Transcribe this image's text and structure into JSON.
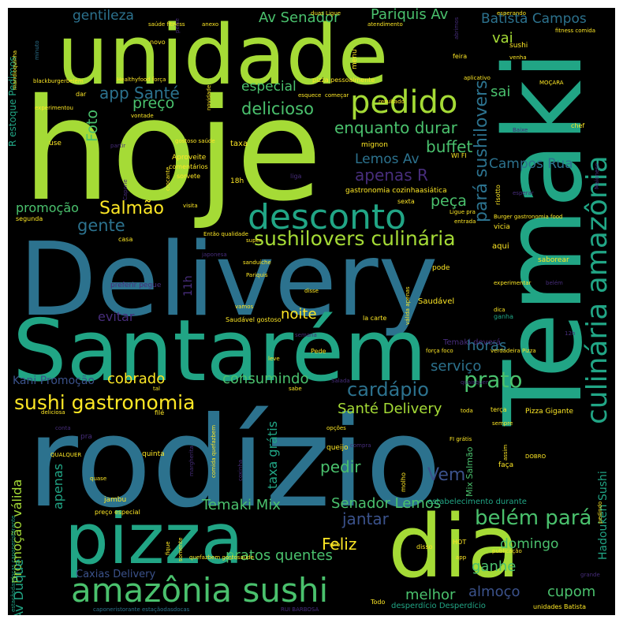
{
  "palette": {
    "background": "#000000",
    "lime": "#a5db36",
    "green": "#4ac16d",
    "teal": "#21a585",
    "teal2": "#1f9e89",
    "blue": "#2c728e",
    "indigo": "#3b528b",
    "purple": "#472d7b",
    "yellow": "#fde725"
  },
  "words": {
    "rodizio": "rodízio",
    "hoje": "hoje",
    "delivery": "Delivery",
    "santarem": "Santarém",
    "temaki": "Temaki",
    "unidade": "unidade",
    "pizza": "pizza",
    "dia": "dia",
    "culinaria_amazonia": "culinária amazônia",
    "amazonia_sushi": "amazônia sushi",
    "desconto": "desconto",
    "pedido": "pedido",
    "sushilovers_culinaria": "sushilovers culinária",
    "sushi_gastronomia": "sushi gastronomia",
    "cardapio": "cardápio",
    "prato": "prato",
    "belem_para": "belém pará",
    "para_sushilovers": "pará sushilovers",
    "salmao": "Salmão",
    "app_sante": "app Santé",
    "delicioso": "delicioso",
    "especial": "especial",
    "preco": "preço",
    "enquanto_durar": "enquanto durar",
    "buffet": "buffet",
    "foto": "Foto",
    "lemos_av": "Lemos Av",
    "apenas_r": "apenas R",
    "campos_rua": "Campos Rua",
    "peca": "peça",
    "gente": "gente",
    "promocao": "promoção",
    "av_senador": "Av Senador",
    "pariquis_av": "Pariquis Av",
    "gentileza": "gentileza",
    "batista_campos": "Batista Campos",
    "vai": "vai",
    "sai": "sai",
    "noite": "noite",
    "evitar": "evitar",
    "horas": "horas",
    "servico": "serviço",
    "cobrado": "cobrado",
    "consumindo": "consumindo",
    "kani_promocao": "Kani Promoção",
    "sante_delivery": "Santé Delivery",
    "vem": "Vem",
    "pedir": "pedir",
    "temaki_mix": "Temaki Mix",
    "senador_lemos": "Senador Lemos",
    "jantar": "jantar",
    "feliz": "Feliz",
    "domingo": "domingo",
    "ganhe": "ganhe",
    "pratos_quentes": "pratos quentes",
    "caxias_delivery": "Caxias Delivery",
    "melhor": "melhor",
    "almoco": "almoço",
    "cupom": "cupom",
    "promocao_valida": "Promoção válida",
    "apenas": "apenas",
    "av_duque": "Av Duque",
    "taxa_gratis": "taxa grátis",
    "hadouken_sushi": "Hadouken Sushi",
    "r_estoque_pedimos": "R estoque Pedimos",
    "once_11h": "11h",
    "use": "use",
    "taxa": "taxa",
    "mignon": "mignon",
    "wifi": "WI FI",
    "aproveite": "Aproveite",
    "comentarios": "comentários",
    "sorvete": "sorvete",
    "h18": "18h",
    "liga": "liga",
    "gastronomia_cozinha": "gastronomia cozinhaasiática",
    "sexta": "sexta",
    "ligue_pra": "Ligue pra",
    "burger_gastronomia": "Burger gastronomia food",
    "entrada": "entrada",
    "vicia": "vicia",
    "aqui": "aqui",
    "saborear": "saborear",
    "experimentar": "experimentar",
    "belem": "belém",
    "pode": "pode",
    "saudavel": "Saudável",
    "saudavel_gostoso": "Saudável gostoso",
    "la_carte": "la carte",
    "temaki_devera": "Temaki deverá",
    "forca_foco": "força foco",
    "verdadeira_pizza": "verdadeira Pizza",
    "pizza_gigante": "Pizza Gigante",
    "toda": "toda",
    "terca": "terça",
    "sempre": "sempre",
    "opcoes": "opções",
    "fi_gratis": "FI grátis",
    "faca": "faça",
    "mix_salmao": "Mix Salmão",
    "dobro": "DOBRO",
    "queijo": "queijo",
    "quinta": "quinta",
    "jambu": "jambu",
    "preco_especial": "preço especial",
    "estabelecimento_durante": "estabelecimento durante",
    "disso": "disso",
    "hot": "HOT",
    "rolo": "rolo",
    "todo": "Todo",
    "desperdicio": "desperdício Desperdício",
    "unidades_batista": "unidades Batista",
    "rui_barbosa": "RUI BARBOSA",
    "caponeristorante": "caponeristorante estaçãodasdocas",
    "estacaodasdocas": "estaçãodasdocas caponeristorante",
    "quefazbem": "quefazbem gostosaúde",
    "filé": "filé",
    "delicosa": "deliciosa",
    "conta": "conta",
    "pra": "pra",
    "qualquer": "QUALQUER",
    "quase": "quase",
    "tal": "tal",
    "sabe": "sabe",
    "salada": "Salada",
    "pede": "Pede",
    "leve": "leve",
    "semana": "semana",
    "dica": "dica",
    "ganha": "ganha",
    "valida_apenas": "válida apenas",
    "vamos": "vamos",
    "sanduiche": "sanduíche",
    "disse": "disse",
    "entao_qualidade": "Então qualidade",
    "super": "super",
    "japonesa": "japonesa",
    "preferir_pegue": "preferir pegue",
    "casa": "casa",
    "pariquis": "Pariquis",
    "visita": "visita",
    "segunda": "segunda",
    "capone": "Capone",
    "crocante": "crocante",
    "partir": "partir",
    "gostoso_saude": "gostoso saúde",
    "vontade": "vontade",
    "dar": "dar",
    "experimentou": "experimentou",
    "healthy": "Healthyfood força",
    "blackburger": "blackburgerbelém",
    "novo": "novo",
    "saude_fitness": "saúde fitness",
    "anexo": "anexo",
    "duas_ligue": "duas Ligue",
    "atendimento": "atendimento",
    "menu": "menu",
    "feira": "feira",
    "sushi": "sushi",
    "venha": "venha",
    "fitness_comida": "fitness comida",
    "aplicativo": "aplicativo",
    "pizza_pessoalmente": "pizza pessoalmente",
    "esquece": "esquece",
    "comecar": "começar",
    "resultado": "resultado",
    "chef": "chef",
    "risotto": "risotto",
    "esperar": "esperar",
    "baixe": "Baixe",
    "mocara": "MOÇARA",
    "pedindo": "pedindo",
    "publicacao": "publicação",
    "app": "app",
    "grande": "grande",
    "somente": "somente",
    "fique": "fique",
    "margherita": "margherita",
    "comida_quefaz": "comida quefazbem",
    "molho": "molho",
    "assim": "assim",
    "compra": "compra",
    "esperando": "esperando",
    "abrimos": "abrimos",
    "mandioquinha": "mandioquinha",
    "novidade": "novidade",
    "doze": "12h",
    "peixe": "peixe",
    "minuto": "minuto",
    "quaisquer": "quaisquer",
    "maionese": "Maionese",
    "coxinha": "coxinha"
  }
}
